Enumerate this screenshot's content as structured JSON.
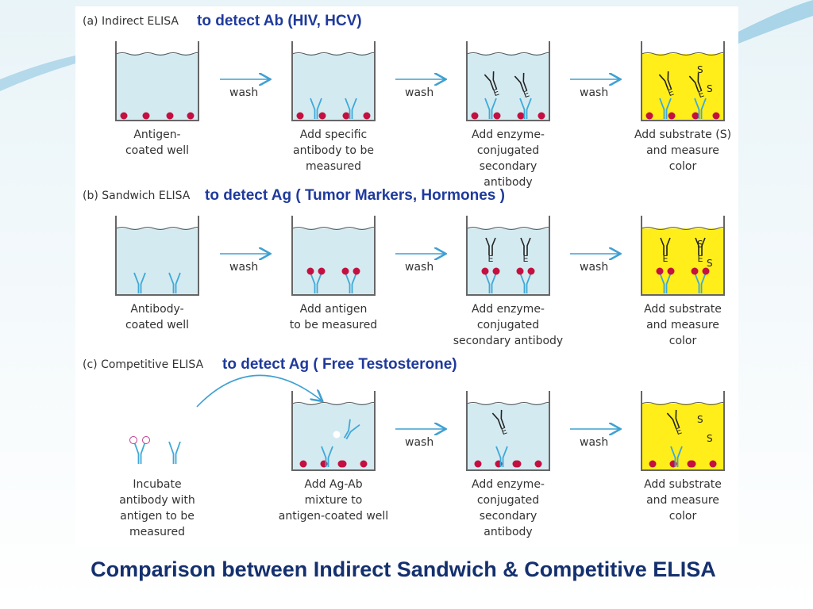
{
  "title": "Comparison between Indirect Sandwich & Competitive ELISA",
  "enzyme_label": "E",
  "substrate_label": "S",
  "panels": [
    {
      "label": "(a) Indirect ELISA",
      "note": "to detect Ab (HIV, HCV)",
      "arrows": [
        "wash",
        "wash",
        "wash"
      ],
      "steps": [
        [
          "Antigen-",
          "coated well"
        ],
        [
          "Add specific",
          "antibody to be",
          "measured"
        ],
        [
          "Add enzyme-",
          "conjugated",
          "secondary",
          "antibody"
        ],
        [
          "Add substrate (S)",
          "and measure",
          "color"
        ]
      ]
    },
    {
      "label": "(b) Sandwich ELISA",
      "note": "to detect Ag ( Tumor Markers, Hormones )",
      "arrows": [
        "wash",
        "wash",
        "wash"
      ],
      "steps": [
        [
          "Antibody-",
          "coated well"
        ],
        [
          "Add antigen",
          "to be measured"
        ],
        [
          "Add enzyme-",
          "conjugated",
          "secondary antibody"
        ],
        [
          "Add substrate",
          "and measure",
          "color"
        ]
      ]
    },
    {
      "label": "(c) Competitive ELISA",
      "note": "to detect Ag ( Free Testosterone)",
      "arrows": [
        "wash",
        "wash"
      ],
      "steps": [
        [
          "Incubate",
          "antibody with",
          "antigen to be",
          "measured"
        ],
        [
          "Add Ag-Ab",
          "mixture to",
          "antigen-coated well"
        ],
        [
          "Add enzyme-",
          "conjugated",
          "secondary",
          "antibody"
        ],
        [
          "Add substrate",
          "and measure",
          "color"
        ]
      ]
    }
  ]
}
